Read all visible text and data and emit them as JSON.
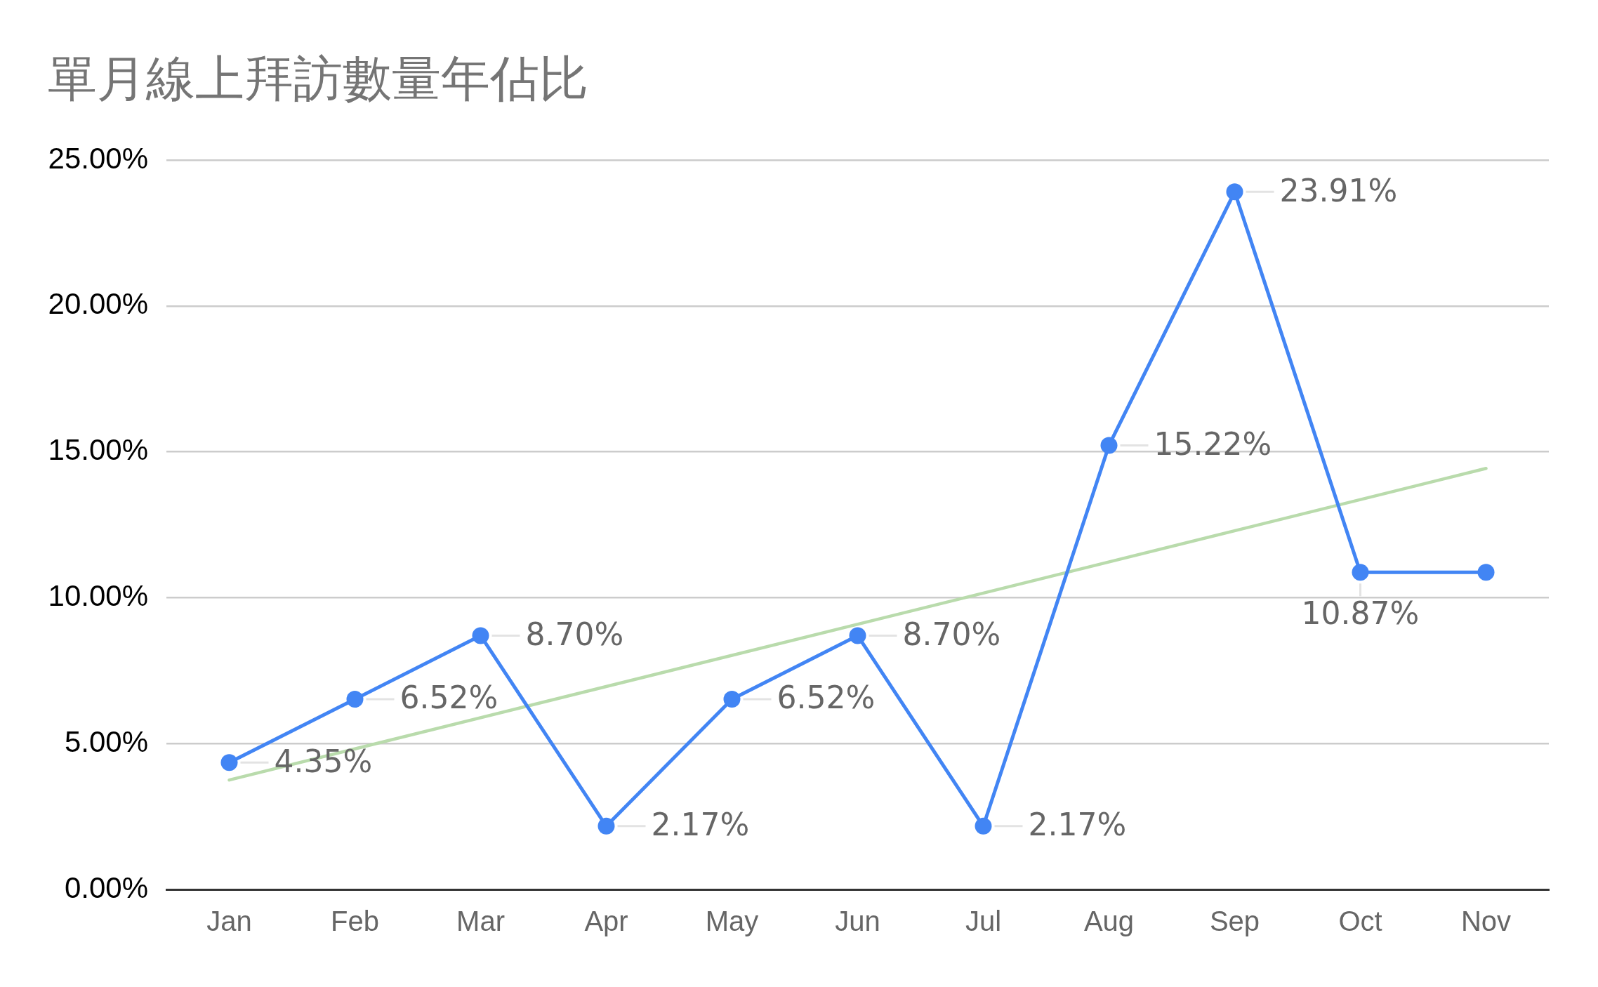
{
  "chart_data": {
    "type": "line",
    "title": "單月線上拜訪數量年佔比",
    "categories": [
      "Jan",
      "Feb",
      "Mar",
      "Apr",
      "May",
      "Jun",
      "Jul",
      "Aug",
      "Sep",
      "Oct",
      "Nov"
    ],
    "series": [
      {
        "color": "#4285f4",
        "values": [
          4.35,
          6.52,
          8.7,
          2.17,
          6.52,
          8.7,
          2.17,
          15.22,
          23.91,
          10.87,
          10.87
        ],
        "value_labels": [
          "4.35%",
          "6.52%",
          "8.70%",
          "2.17%",
          "6.52%",
          "8.70%",
          "2.17%",
          "15.22%",
          "23.91%",
          "10.87%",
          null
        ]
      },
      {
        "type": "line",
        "color": "#b9dbac",
        "x": [
          "Jan",
          "Nov"
        ],
        "values": [
          3.75,
          14.43
        ],
        "marker": "none"
      }
    ],
    "ylim": [
      0,
      25
    ],
    "yticks": [
      {
        "value": 0,
        "label": "0.00%"
      },
      {
        "value": 5,
        "label": "5.00%"
      },
      {
        "value": 10,
        "label": "10.00%"
      },
      {
        "value": 15,
        "label": "15.00%"
      },
      {
        "value": 20,
        "label": "20.00%"
      },
      {
        "value": 25,
        "label": "25.00%"
      }
    ],
    "grid": "y",
    "marker": "circle"
  }
}
